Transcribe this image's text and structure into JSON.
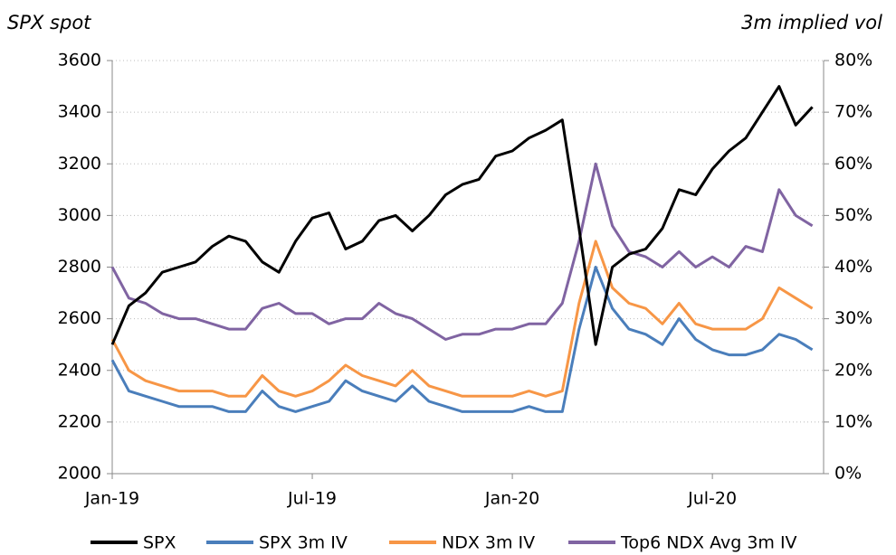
{
  "chart_data": {
    "type": "line",
    "y_label": "SPX spot",
    "y2_label": "3m implied vol",
    "categories": [
      "Jan-19",
      null,
      null,
      null,
      null,
      null,
      null,
      null,
      null,
      null,
      null,
      null,
      "Jul-19",
      null,
      null,
      null,
      null,
      null,
      null,
      null,
      null,
      null,
      null,
      null,
      "Jan-20",
      null,
      null,
      null,
      null,
      null,
      null,
      null,
      null,
      null,
      null,
      null,
      "Jul-20",
      null,
      null,
      null,
      null,
      null,
      null
    ],
    "series": [
      {
        "name": "SPX",
        "color": "#000000",
        "values": [
          2500,
          2650,
          2700,
          2780,
          2800,
          2820,
          2880,
          2920,
          2900,
          2820,
          2780,
          2900,
          2990,
          3010,
          2870,
          2900,
          2980,
          3000,
          2940,
          3000,
          3080,
          3120,
          3140,
          3230,
          3250,
          3300,
          3330,
          3370,
          2950,
          2500,
          2800,
          2850,
          2870,
          2950,
          3100,
          3080,
          3180,
          3250,
          3300,
          3400,
          3500,
          3350,
          3420
        ]
      },
      {
        "name": "SPX 3m IV",
        "color": "#4a7ebb",
        "axis": "y2",
        "values": [
          22,
          16,
          15,
          14,
          13,
          13,
          13,
          12,
          12,
          16,
          13,
          12,
          13,
          14,
          18,
          16,
          15,
          14,
          17,
          14,
          13,
          12,
          12,
          12,
          12,
          13,
          12,
          12,
          28,
          40,
          32,
          28,
          27,
          25,
          30,
          26,
          24,
          23,
          23,
          24,
          27,
          26,
          24
        ]
      },
      {
        "name": "NDX 3m IV",
        "color": "#f79646",
        "axis": "y2",
        "values": [
          26,
          20,
          18,
          17,
          16,
          16,
          16,
          15,
          15,
          19,
          16,
          15,
          16,
          18,
          21,
          19,
          18,
          17,
          20,
          17,
          16,
          15,
          15,
          15,
          15,
          16,
          15,
          16,
          33,
          45,
          36,
          33,
          32,
          29,
          33,
          29,
          28,
          28,
          28,
          30,
          36,
          34,
          32
        ]
      },
      {
        "name": "Top6 NDX Avg 3m IV",
        "color": "#8064a2",
        "axis": "y2",
        "values": [
          40,
          34,
          33,
          31,
          30,
          30,
          29,
          28,
          28,
          32,
          33,
          31,
          31,
          29,
          30,
          30,
          33,
          31,
          30,
          28,
          26,
          27,
          27,
          28,
          28,
          29,
          29,
          33,
          45,
          60,
          48,
          43,
          42,
          40,
          43,
          40,
          42,
          40,
          44,
          43,
          55,
          50,
          48
        ]
      }
    ],
    "ylim": [
      2000,
      3600
    ],
    "yticks": [
      2000,
      2200,
      2400,
      2600,
      2800,
      3000,
      3200,
      3400,
      3600
    ],
    "y2lim": [
      0,
      80
    ],
    "y2ticks": [
      {
        "value": 0,
        "label": "0%"
      },
      {
        "value": 10,
        "label": "10%"
      },
      {
        "value": 20,
        "label": "20%"
      },
      {
        "value": 30,
        "label": "30%"
      },
      {
        "value": 40,
        "label": "40%"
      },
      {
        "value": 50,
        "label": "50%"
      },
      {
        "value": 60,
        "label": "60%"
      },
      {
        "value": 70,
        "label": "70%"
      },
      {
        "value": 80,
        "label": "80%"
      }
    ],
    "grid": true,
    "legend": "bottom"
  }
}
